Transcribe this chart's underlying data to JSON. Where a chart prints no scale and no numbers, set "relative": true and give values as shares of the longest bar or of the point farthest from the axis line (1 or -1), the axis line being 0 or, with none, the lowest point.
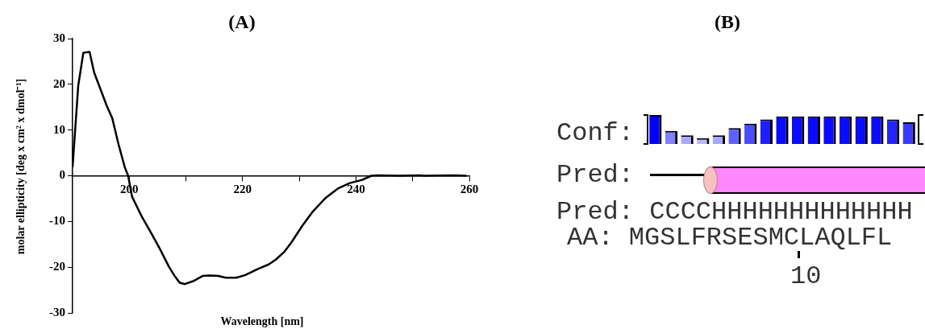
{
  "chart_data": [
    {
      "type": "line",
      "title": "(A)",
      "xlabel": "Wavelength [nm]",
      "ylabel": "molar ellipticity [deg x cm² x dmol⁻¹]",
      "series": [
        {
          "color": "#000000",
          "x": [
            190,
            191,
            191.9,
            193,
            193.8,
            194.9,
            196,
            197,
            198.1,
            199.2,
            199.8,
            200.5,
            202.2,
            203.8,
            205.4,
            207,
            208.1,
            208.9,
            209.8,
            211.4,
            213,
            214.1,
            215.7,
            217,
            218.9,
            220.5,
            222.7,
            224.6,
            225.9,
            227.3,
            228.6,
            230.5,
            232.4,
            234.6,
            236.8,
            238.9,
            241.1,
            242.7,
            243.8,
            247.6,
            251.4,
            252,
            257.3,
            259.5
          ],
          "values": [
            1.9,
            19.7,
            26.9,
            27.1,
            22.6,
            19,
            15.4,
            12.6,
            6.9,
            1.9,
            0,
            -4.6,
            -8.9,
            -12.4,
            -16,
            -19.9,
            -22.1,
            -23.4,
            -23.7,
            -23,
            -21.9,
            -21.8,
            -21.9,
            -22.3,
            -22.3,
            -21.7,
            -20.4,
            -19.4,
            -18.3,
            -16.7,
            -14.6,
            -11,
            -7.8,
            -4.9,
            -2.8,
            -1.6,
            -0.9,
            0,
            0.1,
            0,
            0.1,
            0,
            0.1,
            0
          ]
        }
      ],
      "xlim": [
        190,
        260
      ],
      "xticks": [
        200,
        {
          "value": 210,
          "label": null
        },
        220,
        {
          "value": 230,
          "label": null
        },
        240,
        {
          "value": 250,
          "label": null
        },
        260
      ],
      "ylim": [
        -30,
        30
      ],
      "yticks": [
        -30,
        -20,
        -10,
        0,
        10,
        20,
        30
      ],
      "grid": false,
      "legend": false,
      "marker": "none",
      "line_style": "solid"
    },
    {
      "type": "bar",
      "title": "(B)",
      "relative": true,
      "categories": [
        null,
        null,
        null,
        null,
        null,
        null,
        null,
        null,
        null,
        null,
        null,
        null,
        null,
        null,
        null,
        null,
        null
      ],
      "values": [
        1,
        0.45,
        0.3,
        0.2,
        0.3,
        0.55,
        0.7,
        0.85,
        0.95,
        0.95,
        0.95,
        0.95,
        0.95,
        0.95,
        0.95,
        0.85,
        0.75
      ],
      "colors": [
        "#0000ff",
        "#8080ff",
        "#a8a8ff",
        "#b8b8ff",
        "#a8a8ff",
        "#6060ff",
        "#4c4cff",
        "#1e1eff",
        "#0a0aff",
        "#0a0aff",
        "#0a0aff",
        "#0a0aff",
        "#0a0aff",
        "#0a0aff",
        "#0a0aff",
        "#2424ff",
        "#3a3aff"
      ],
      "annotations": [
        "Conf:",
        "Pred:",
        "Pred: CCCCHHHHHHHHHHHHH",
        "AA: MGSLFRSESMCLAQLFL",
        "10"
      ],
      "legend": false
    }
  ]
}
